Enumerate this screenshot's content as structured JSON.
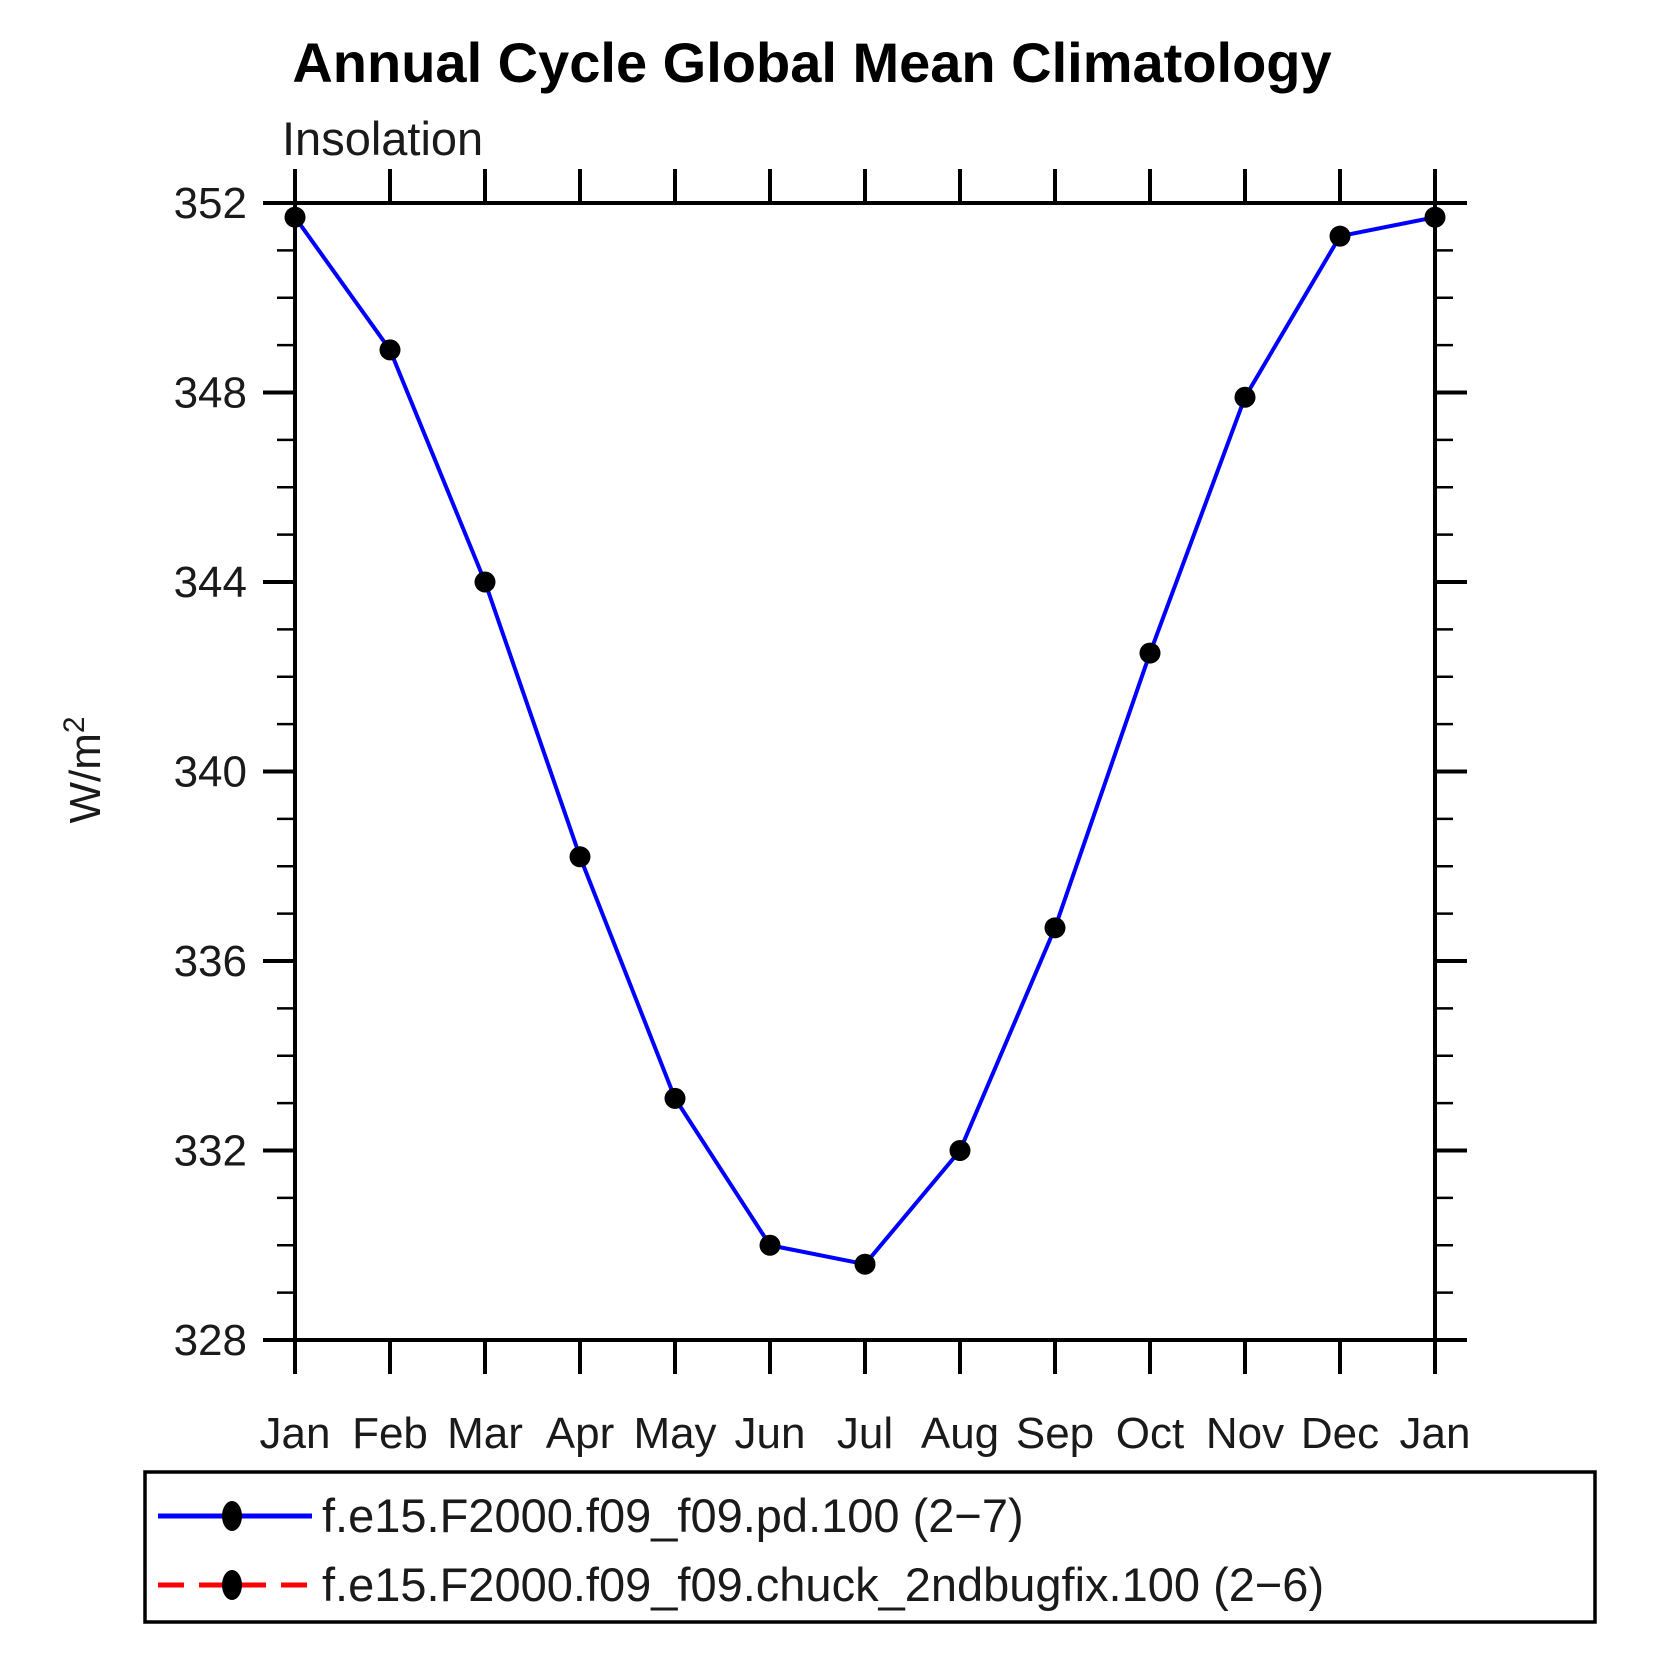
{
  "chart_data": {
    "type": "line",
    "title": "Annual Cycle Global Mean Climatology",
    "subtitle": "Insolation",
    "ylabel": "W/m²",
    "ylabel_base": "W/m",
    "ylabel_exp": "2",
    "categories": [
      "Jan",
      "Feb",
      "Mar",
      "Apr",
      "May",
      "Jun",
      "Jul",
      "Aug",
      "Sep",
      "Oct",
      "Nov",
      "Dec",
      "Jan"
    ],
    "ylim": [
      328,
      352
    ],
    "ytick_interval": 4,
    "yminor_interval": 1,
    "ytick_labels": [
      "328",
      "332",
      "336",
      "340",
      "344",
      "348",
      "352"
    ],
    "grid": false,
    "legend_position": "bottom-box",
    "axis_color": "#000000",
    "series": [
      {
        "name": "f.e15.F2000.f09_f09.pd.100 (2−7)",
        "color": "#0000ff",
        "line_style": "solid",
        "marker": "filled-circle",
        "marker_color": "#000000",
        "values": [
          351.7,
          348.9,
          344.0,
          338.2,
          333.1,
          330.0,
          329.6,
          332.0,
          336.7,
          342.5,
          347.9,
          351.3,
          351.7
        ]
      },
      {
        "name": "f.e15.F2000.f09_f09.chuck_2ndbugfix.100 (2−6)",
        "color": "#ff0000",
        "line_style": "dashed",
        "marker": "filled-circle",
        "marker_color": "#000000",
        "values": [],
        "note": "legend entry only; no separate curve visible in plot"
      }
    ]
  }
}
